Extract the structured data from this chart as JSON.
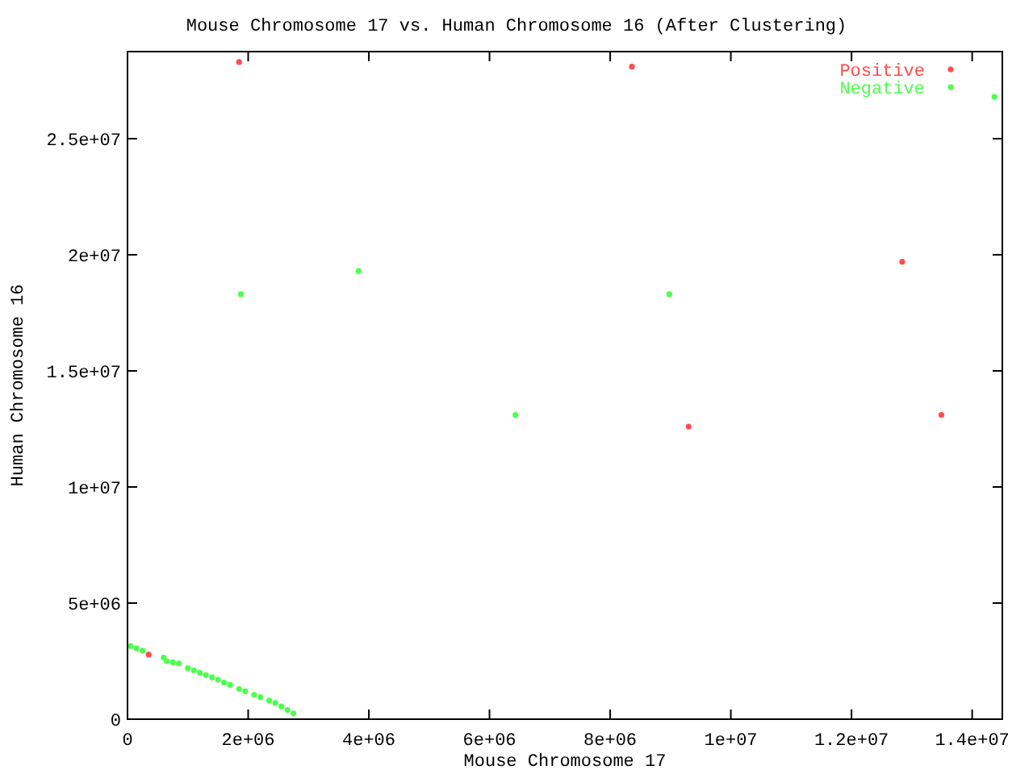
{
  "chart_data": {
    "type": "scatter",
    "title": "Mouse Chromosome 17 vs. Human Chromosome 16 (After Clustering)",
    "xlabel": "Mouse Chromosome 17",
    "ylabel": "Human Chromosome 16",
    "xlim": [
      0,
      14500000
    ],
    "ylim": [
      0,
      28750000
    ],
    "xticks": [
      0,
      {
        "value": 2000000,
        "label": "2e+06"
      },
      {
        "value": 4000000,
        "label": "4e+06"
      },
      {
        "value": 6000000,
        "label": "6e+06"
      },
      {
        "value": 8000000,
        "label": "8e+06"
      },
      {
        "value": 10000000,
        "label": "1e+07"
      },
      {
        "value": 12000000,
        "label": "1.2e+07"
      },
      {
        "value": 14000000,
        "label": "1.4e+07"
      }
    ],
    "yticks": [
      0,
      {
        "value": 5000000,
        "label": "5e+06"
      },
      {
        "value": 10000000,
        "label": "1e+07"
      },
      {
        "value": 15000000,
        "label": "1.5e+07"
      },
      {
        "value": 20000000,
        "label": "2e+07"
      },
      {
        "value": 25000000,
        "label": "2.5e+07"
      }
    ],
    "legend": "top right",
    "grid": false,
    "marker": "circle",
    "series": [
      {
        "name": "Positive",
        "color": "#ff4d4d",
        "x": [
          1850000,
          8360000,
          12840000,
          9300000,
          13490000,
          350000
        ],
        "values": [
          28300000,
          28100000,
          19700000,
          12600000,
          13100000,
          2780000
        ]
      },
      {
        "name": "Negative",
        "color": "#4dff4d",
        "x": [
          14370000,
          1880000,
          3830000,
          8980000,
          6430000,
          50000,
          150000,
          250000,
          600000,
          650000,
          750000,
          850000,
          1000000,
          1100000,
          1200000,
          1300000,
          1400000,
          1500000,
          1600000,
          1700000,
          1850000,
          1950000,
          2100000,
          2200000,
          2350000,
          2450000,
          2550000,
          2650000,
          2750000
        ],
        "values": [
          26800000,
          18300000,
          19300000,
          18300000,
          13100000,
          3150000,
          3050000,
          2950000,
          2650000,
          2500000,
          2450000,
          2400000,
          2200000,
          2100000,
          2000000,
          1900000,
          1800000,
          1700000,
          1580000,
          1480000,
          1300000,
          1200000,
          1050000,
          950000,
          800000,
          700000,
          550000,
          400000,
          250000
        ]
      }
    ]
  }
}
